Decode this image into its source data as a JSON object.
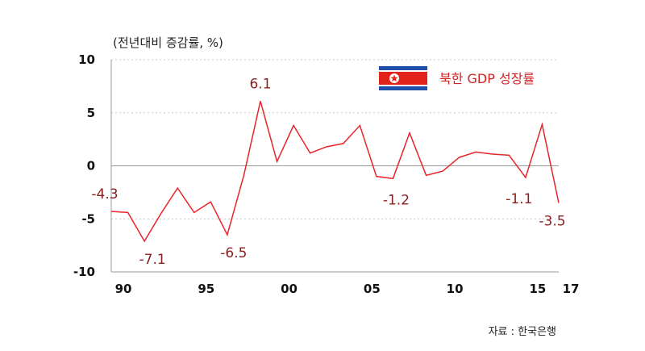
{
  "chart_data": {
    "type": "line",
    "unit_label": "(전년대비 증감률, %)",
    "legend": "북한 GDP 성장률",
    "source": "자료 : 한국은행",
    "ylim": [
      -10,
      10
    ],
    "yticks": [
      10,
      5,
      0,
      -5,
      -10
    ],
    "xlim": [
      1990,
      2017
    ],
    "xticks": [
      {
        "year": 1990,
        "label": "90"
      },
      {
        "year": 1995,
        "label": "95"
      },
      {
        "year": 2000,
        "label": "00"
      },
      {
        "year": 2005,
        "label": "05"
      },
      {
        "year": 2010,
        "label": "10"
      },
      {
        "year": 2015,
        "label": "15"
      },
      {
        "year": 2017,
        "label": "17"
      }
    ],
    "grid": true,
    "legend_position": "top-right",
    "colors": {
      "line": "#e8242a",
      "label": "#8a1f1f",
      "grid": "#c8c8c8",
      "axis": "#999999"
    },
    "series": [
      {
        "name": "북한 GDP 성장률",
        "x": [
          1990,
          1991,
          1992,
          1993,
          1994,
          1995,
          1996,
          1997,
          1998,
          1999,
          2000,
          2001,
          2002,
          2003,
          2004,
          2005,
          2006,
          2007,
          2008,
          2009,
          2010,
          2011,
          2012,
          2013,
          2014,
          2015,
          2016,
          2017
        ],
        "y": [
          -4.3,
          -4.4,
          -7.1,
          -4.5,
          -2.1,
          -4.4,
          -3.4,
          -6.5,
          -0.9,
          6.1,
          0.4,
          3.8,
          1.2,
          1.8,
          2.1,
          3.8,
          -1.0,
          -1.2,
          3.1,
          -0.9,
          -0.5,
          0.8,
          1.3,
          1.1,
          1.0,
          -1.1,
          3.9,
          -3.5
        ]
      }
    ],
    "data_labels": [
      {
        "year": 1990,
        "text": "-4.3",
        "dx": -8,
        "dy": -16
      },
      {
        "year": 1992,
        "text": "-7.1",
        "dx": 10,
        "dy": 28
      },
      {
        "year": 1997,
        "text": "-6.5",
        "dx": 8,
        "dy": 28
      },
      {
        "year": 1999,
        "text": "6.1",
        "dx": 0,
        "dy": -16
      },
      {
        "year": 2007,
        "text": "-1.2",
        "dx": 4,
        "dy": 32
      },
      {
        "year": 2015,
        "text": "-1.1",
        "dx": -8,
        "dy": 32
      },
      {
        "year": 2017,
        "text": "-3.5",
        "dx": -8,
        "dy": 28
      }
    ]
  }
}
